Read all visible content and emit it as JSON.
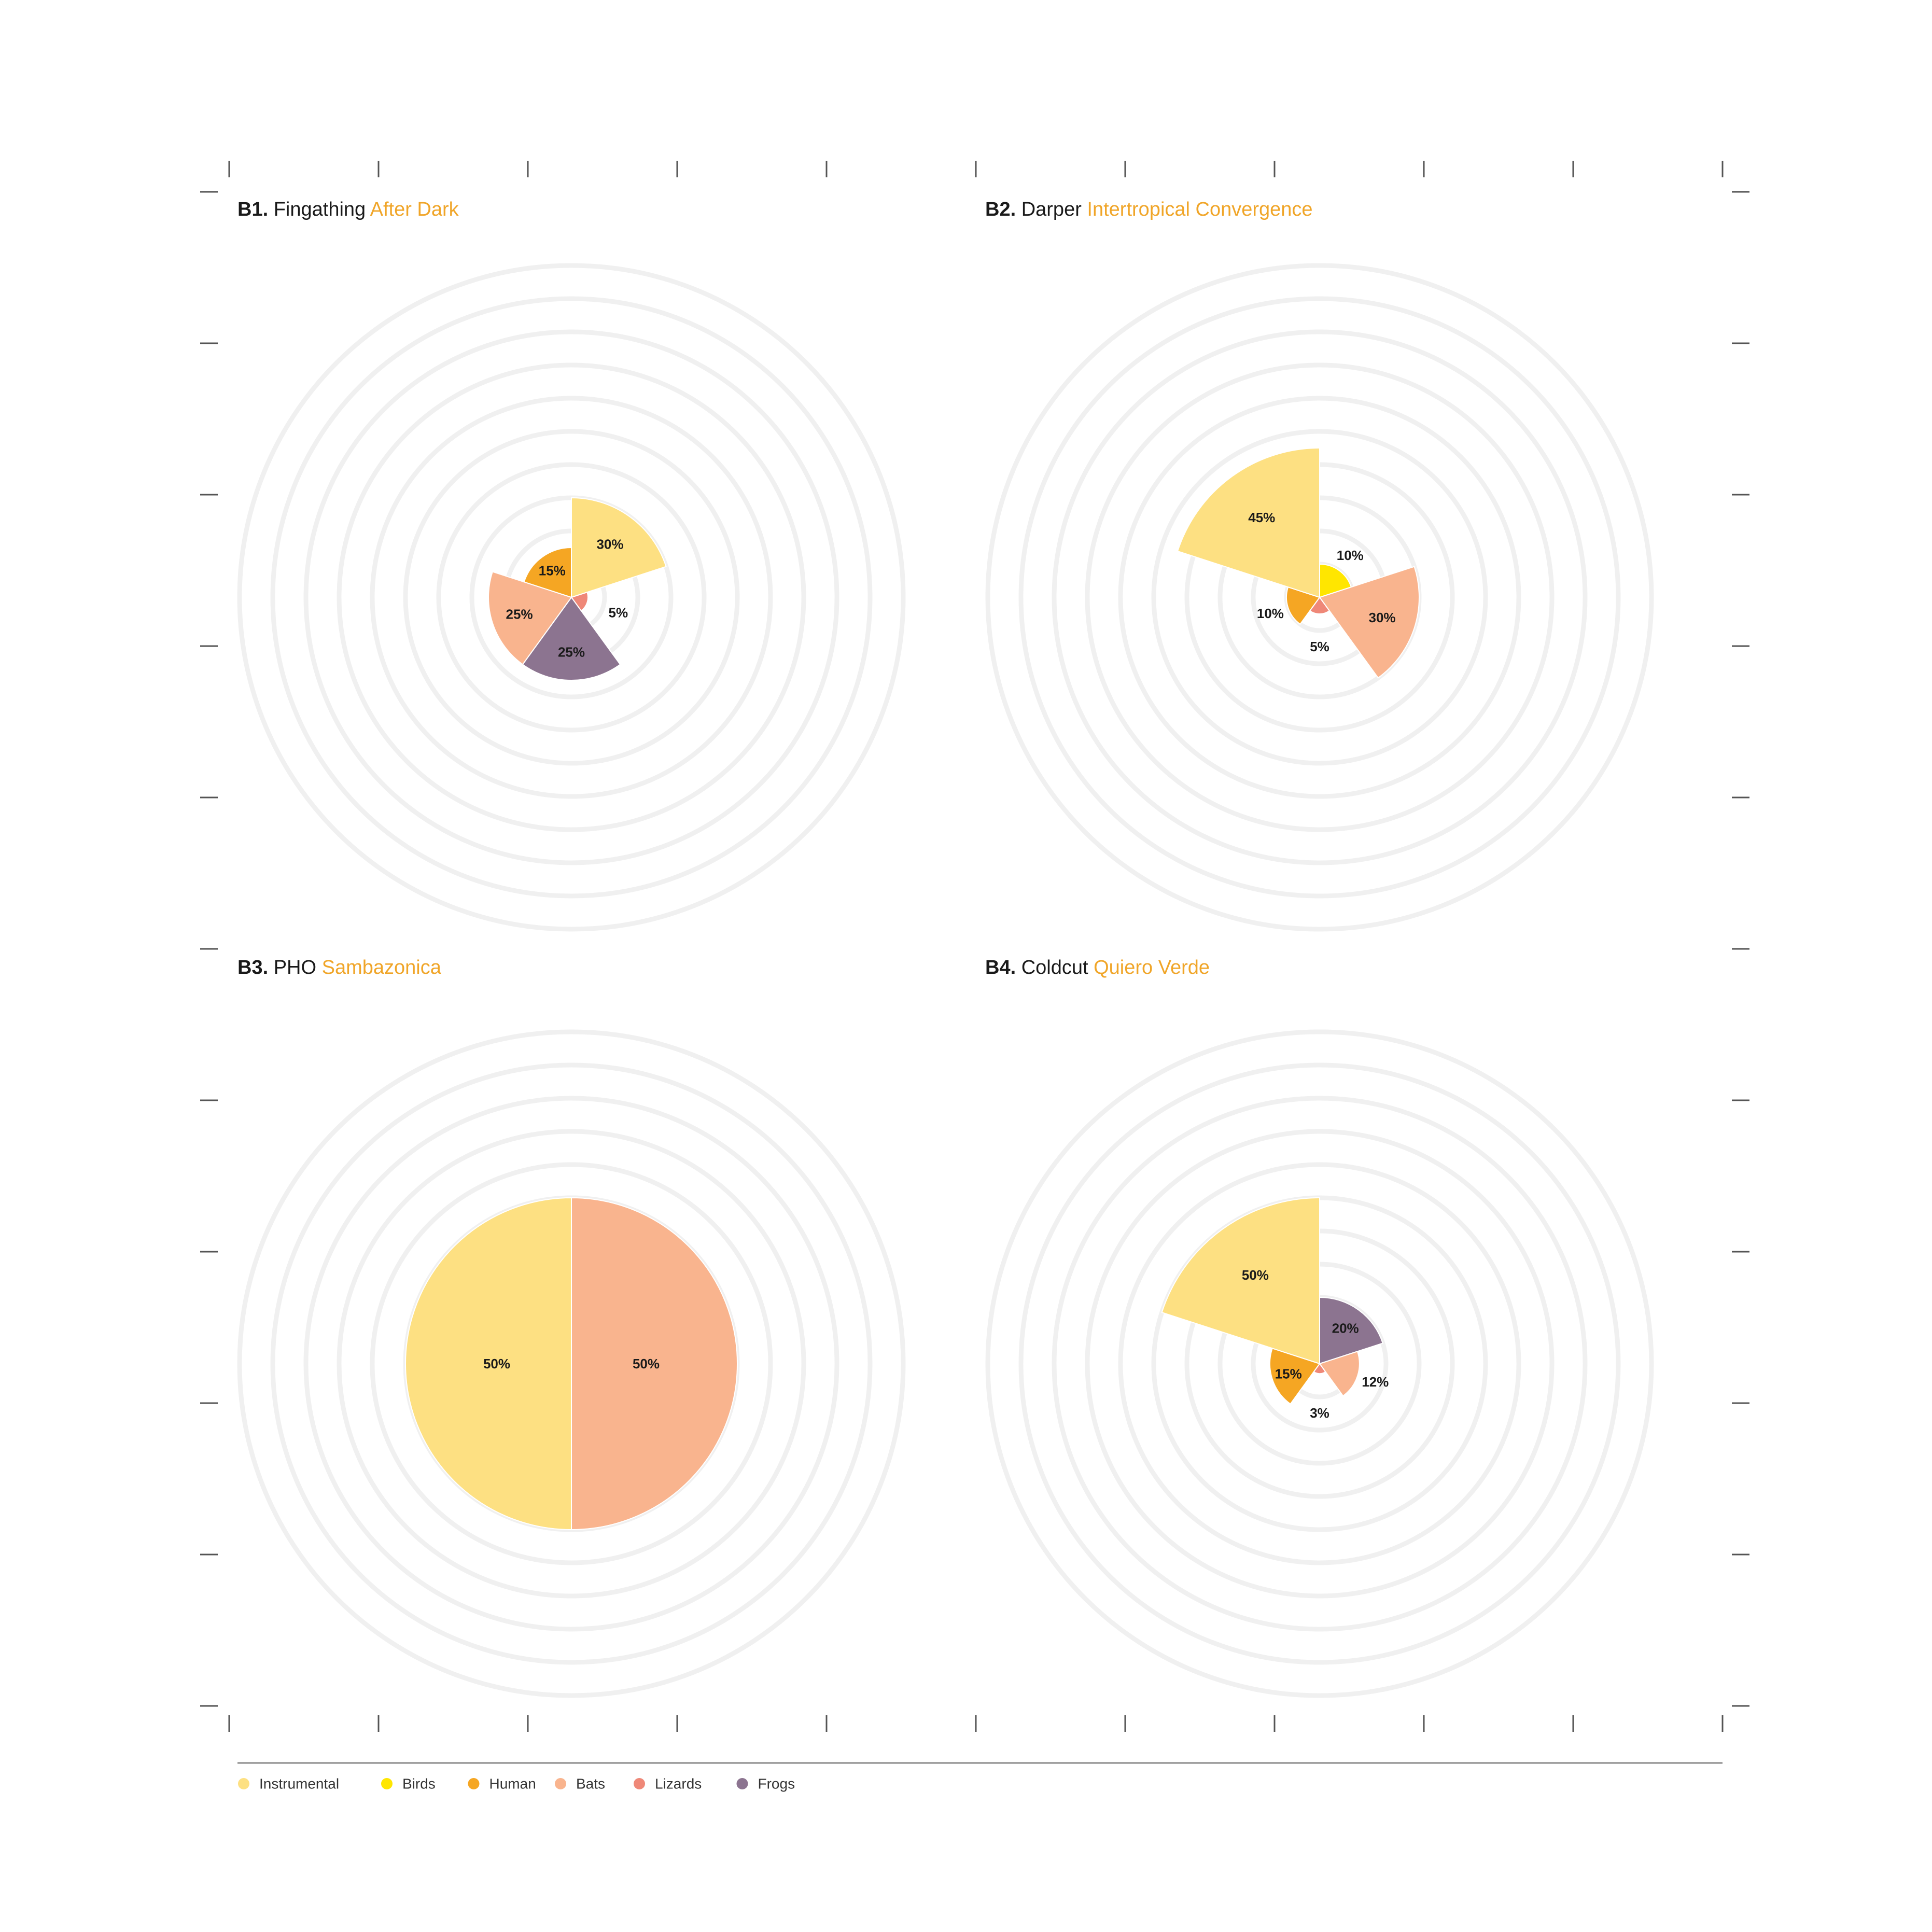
{
  "legend": [
    {
      "label": "Instrumental",
      "color": "#fde082"
    },
    {
      "label": "Birds",
      "color": "#ffe600"
    },
    {
      "label": "Human",
      "color": "#f5a623"
    },
    {
      "label": "Bats",
      "color": "#f9b48e"
    },
    {
      "label": "Lizards",
      "color": "#ef8878"
    },
    {
      "label": "Frogs",
      "color": "#8c7490"
    }
  ],
  "chart_data": [
    {
      "type": "pie",
      "code": "B1.",
      "artist": "Fingathing",
      "track": "After Dark",
      "slices": [
        {
          "category": "Instrumental",
          "value": 30,
          "label": "30%"
        },
        {
          "category": "Lizards",
          "value": 5,
          "label": "5%"
        },
        {
          "category": "Frogs",
          "value": 25,
          "label": "25%"
        },
        {
          "category": "Bats",
          "value": 25,
          "label": "25%"
        },
        {
          "category": "Human",
          "value": 15,
          "label": "15%"
        }
      ]
    },
    {
      "type": "pie",
      "code": "B2.",
      "artist": "Darper",
      "track": "Intertropical Convergence",
      "slices": [
        {
          "category": "Birds",
          "value": 10,
          "label": "10%"
        },
        {
          "category": "Bats",
          "value": 30,
          "label": "30%"
        },
        {
          "category": "Lizards",
          "value": 5,
          "label": "5%"
        },
        {
          "category": "Human",
          "value": 10,
          "label": "10%"
        },
        {
          "category": "Instrumental",
          "value": 45,
          "label": "45%"
        }
      ]
    },
    {
      "type": "pie",
      "code": "B3.",
      "artist": "PHO",
      "track": "Sambazonica",
      "slices": [
        {
          "category": "Bats",
          "value": 50,
          "label": "50%"
        },
        {
          "category": "Instrumental",
          "value": 50,
          "label": "50%"
        }
      ]
    },
    {
      "type": "pie",
      "code": "B4.",
      "artist": "Coldcut",
      "track": "Quiero Verde",
      "slices": [
        {
          "category": "Frogs",
          "value": 20,
          "label": "20%"
        },
        {
          "category": "Bats",
          "value": 12,
          "label": "12%"
        },
        {
          "category": "Lizards",
          "value": 3,
          "label": "3%"
        },
        {
          "category": "Human",
          "value": 15,
          "label": "15%"
        },
        {
          "category": "Instrumental",
          "value": 50,
          "label": "50%"
        }
      ]
    }
  ]
}
